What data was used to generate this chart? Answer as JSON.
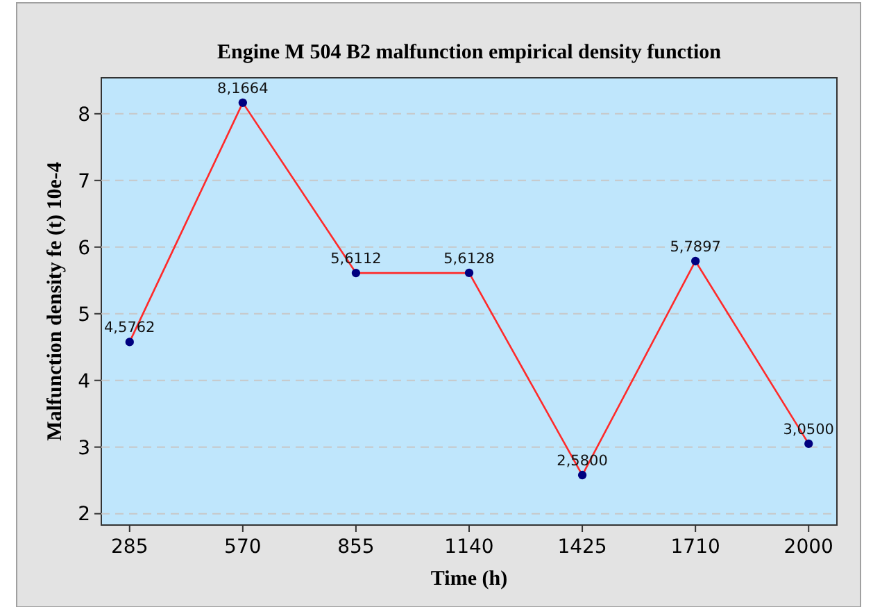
{
  "chart_data": {
    "type": "line",
    "title": "Engine M 504 B2 malfunction empirical density function",
    "xlabel": "Time (h)",
    "ylabel": "Malfunction density fe (t) 10e-4",
    "categories": [
      "285",
      "570",
      "855",
      "1140",
      "1425",
      "1710",
      "2000"
    ],
    "series": [
      {
        "color": "#ff2a2a",
        "values": [
          4.5762,
          8.1664,
          5.6112,
          5.6128,
          2.58,
          5.7897,
          3.05
        ],
        "value_labels": [
          "4,5762",
          "8,1664",
          "5,6112",
          "5,6128",
          "2,5800",
          "5,7897",
          "3,0500"
        ]
      }
    ],
    "ylim": [
      1.83,
      8.54
    ],
    "yticks": [
      2,
      3,
      4,
      5,
      6,
      7,
      8
    ],
    "grid": "y",
    "marker": "circle",
    "line_style": "solid"
  }
}
